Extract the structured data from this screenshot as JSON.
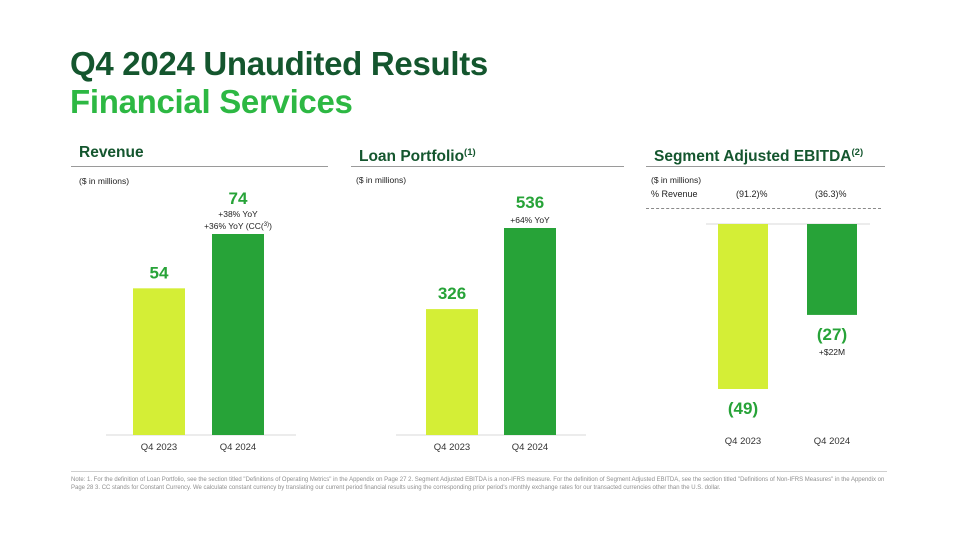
{
  "title": "Q4 2024 Unaudited Results",
  "subtitle": "Financial Services",
  "colors": {
    "prior": "#d4ee36",
    "current": "#27a338",
    "title": "#14562e",
    "accent": "#2db843"
  },
  "panels": {
    "revenue": {
      "title": "Revenue",
      "units": "($ in millions)"
    },
    "loan": {
      "title": "Loan Portfolio",
      "sup": "(1)",
      "units": "($ in millions)"
    },
    "ebitda": {
      "title": "Segment Adjusted EBITDA",
      "sup": "(2)",
      "units": "($ in millions)",
      "pct_row_label": "% Revenue",
      "pct_values": [
        "(91.2)%",
        "(36.3)%"
      ]
    }
  },
  "chart_data": [
    {
      "type": "bar",
      "title": "Revenue",
      "categories": [
        "Q4 2023",
        "Q4 2024"
      ],
      "values": [
        54,
        74
      ],
      "value_labels": [
        "54",
        "74"
      ],
      "annotations": [
        "",
        "+38% YoY\n+36% YoY (CC(3))"
      ]
    },
    {
      "type": "bar",
      "title": "Loan Portfolio",
      "categories": [
        "Q4 2023",
        "Q4 2024"
      ],
      "values": [
        326,
        536
      ],
      "value_labels": [
        "326",
        "536"
      ],
      "annotations": [
        "",
        "+64% YoY"
      ]
    },
    {
      "type": "bar",
      "title": "Segment Adjusted EBITDA",
      "categories": [
        "Q4 2023",
        "Q4 2024"
      ],
      "values": [
        -49,
        -27
      ],
      "value_labels": [
        "(49)",
        "(27)"
      ],
      "annotations": [
        "",
        "+$22M"
      ]
    }
  ],
  "footnote": "Note: 1. For the definition of Loan Portfolio, see the section titled \"Definitions of Operating Metrics\" in the Appendix on Page 27 2. Segment Adjusted EBITDA is a non-IFRS measure. For the definition of Segment Adjusted EBITDA, see the section titled \"Definitions of Non-IFRS Measures\" in the Appendix on Page 28 3. CC stands for Constant Currency. We calculate constant currency by translating our current period financial results using the corresponding prior period's monthly exchange rates for our transacted currencies other than the U.S. dollar."
}
